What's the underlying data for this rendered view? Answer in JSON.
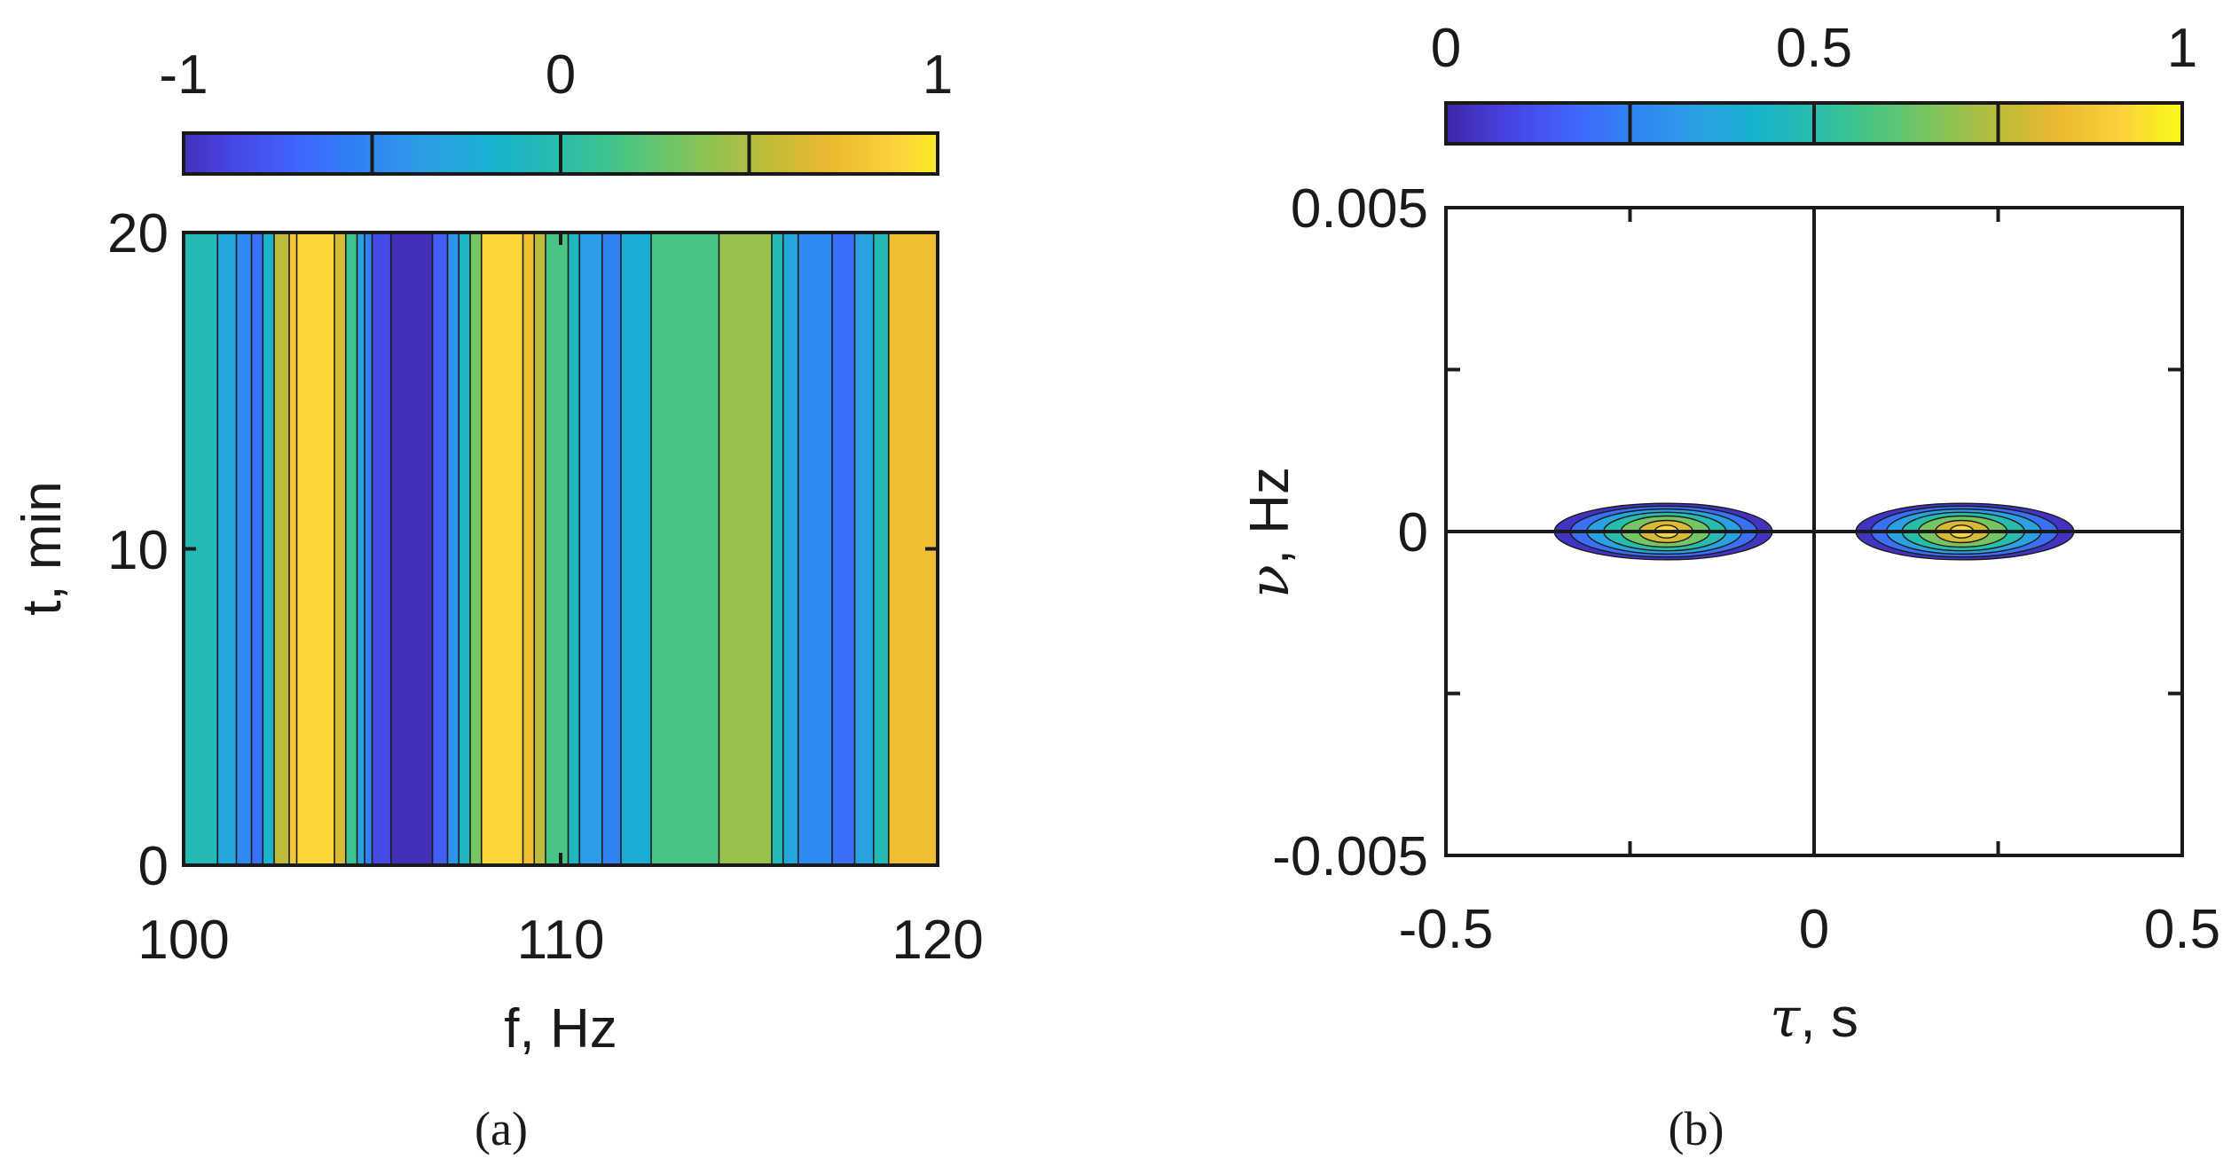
{
  "colors": {
    "parula": [
      "#3e26a8",
      "#4743e1",
      "#4163fb",
      "#2f83f5",
      "#2d9ee6",
      "#17b2cf",
      "#28bdab",
      "#4cc581",
      "#82c45a",
      "#bbbc3b",
      "#ecb92f",
      "#fbd13d",
      "#f9fb15"
    ],
    "frame": "#1a1a1a"
  },
  "chart_data": [
    {
      "type": "heatmap",
      "panel": "(a)",
      "caption": "(a)",
      "xlabel": "f, Hz",
      "ylabel": "t, min",
      "xlim": [
        100,
        120
      ],
      "ylim": [
        0,
        20
      ],
      "xticks": [
        100,
        110,
        120
      ],
      "xtick_labels": [
        "100",
        "110",
        "120"
      ],
      "yticks": [
        0,
        10,
        20
      ],
      "ytick_labels": [
        "0",
        "10",
        "20"
      ],
      "colorbar": {
        "range": [
          -1,
          1
        ],
        "ticks": [
          -1,
          0,
          1
        ],
        "tick_labels": [
          "-1",
          "0",
          "1"
        ],
        "divider_values": [
          -0.5,
          0,
          0.5
        ],
        "position": "top"
      },
      "description_of_values": "values vary only with f (constant in t)",
      "bands": [
        {
          "f0": 100.0,
          "f1": 100.9,
          "value": -0.05
        },
        {
          "f0": 100.9,
          "f1": 101.4,
          "value": -0.25
        },
        {
          "f0": 101.4,
          "f1": 101.8,
          "value": -0.45
        },
        {
          "f0": 101.8,
          "f1": 102.1,
          "value": -0.6
        },
        {
          "f0": 102.1,
          "f1": 102.4,
          "value": -0.15
        },
        {
          "f0": 102.4,
          "f1": 102.8,
          "value": 0.5
        },
        {
          "f0": 102.8,
          "f1": 103.0,
          "value": 0.75
        },
        {
          "f0": 103.0,
          "f1": 104.0,
          "value": 0.85
        },
        {
          "f0": 104.0,
          "f1": 104.3,
          "value": 0.6
        },
        {
          "f0": 104.3,
          "f1": 104.6,
          "value": 0.1
        },
        {
          "f0": 104.6,
          "f1": 104.8,
          "value": -0.3
        },
        {
          "f0": 104.8,
          "f1": 105.0,
          "value": -0.5
        },
        {
          "f0": 105.0,
          "f1": 105.5,
          "value": -0.8
        },
        {
          "f0": 105.5,
          "f1": 106.6,
          "value": -0.95
        },
        {
          "f0": 106.6,
          "f1": 107.0,
          "value": -0.7
        },
        {
          "f0": 107.0,
          "f1": 107.3,
          "value": -0.4
        },
        {
          "f0": 107.3,
          "f1": 107.6,
          "value": -0.1
        },
        {
          "f0": 107.6,
          "f1": 107.9,
          "value": 0.3
        },
        {
          "f0": 107.9,
          "f1": 109.0,
          "value": 0.85
        },
        {
          "f0": 109.0,
          "f1": 109.3,
          "value": 0.7
        },
        {
          "f0": 109.3,
          "f1": 109.6,
          "value": 0.5
        },
        {
          "f0": 109.6,
          "f1": 110.2,
          "value": 0.15
        },
        {
          "f0": 110.2,
          "f1": 110.5,
          "value": -0.1
        },
        {
          "f0": 110.5,
          "f1": 111.1,
          "value": -0.35
        },
        {
          "f0": 111.1,
          "f1": 111.6,
          "value": -0.5
        },
        {
          "f0": 111.6,
          "f1": 112.4,
          "value": -0.2
        },
        {
          "f0": 112.4,
          "f1": 114.2,
          "value": 0.15
        },
        {
          "f0": 114.2,
          "f1": 115.6,
          "value": 0.4
        },
        {
          "f0": 115.6,
          "f1": 115.9,
          "value": -0.05
        },
        {
          "f0": 115.9,
          "f1": 116.3,
          "value": -0.25
        },
        {
          "f0": 116.3,
          "f1": 117.2,
          "value": -0.45
        },
        {
          "f0": 117.2,
          "f1": 117.8,
          "value": -0.6
        },
        {
          "f0": 117.8,
          "f1": 118.3,
          "value": -0.3
        },
        {
          "f0": 118.3,
          "f1": 118.7,
          "value": -0.05
        },
        {
          "f0": 118.7,
          "f1": 120.0,
          "value": 0.7
        }
      ]
    },
    {
      "type": "heatmap",
      "panel": "(b)",
      "caption": "(b)",
      "xlabel_symbol": "τ",
      "xlabel_unit": ", s",
      "ylabel_symbol": "ν",
      "ylabel_unit": ", Hz",
      "xlim": [
        -0.5,
        0.5
      ],
      "ylim": [
        -0.005,
        0.005
      ],
      "xticks": [
        -0.5,
        0,
        0.5
      ],
      "xtick_labels": [
        "-0.5",
        "0",
        "0.5"
      ],
      "minor_xticks": [
        -0.25,
        0.25
      ],
      "yticks": [
        -0.005,
        0,
        0.005
      ],
      "ytick_labels": [
        "-0.005",
        "0",
        "0.005"
      ],
      "minor_yticks": [
        -0.0025,
        0.0025
      ],
      "colorbar": {
        "range": [
          0,
          1
        ],
        "ticks": [
          0,
          0.5,
          1
        ],
        "tick_labels": [
          "0",
          "0.5",
          "1"
        ],
        "divider_values": [
          0.25,
          0.5,
          0.75
        ],
        "position": "top"
      },
      "reference_lines": {
        "tau": 0,
        "nu": 0
      },
      "blobs": [
        {
          "tau_center": -0.2,
          "nu_center": 0,
          "tau_extent": [
            -0.36,
            -0.05
          ],
          "nu_halfwidth": 0.00045,
          "peak": 1
        },
        {
          "tau_center": 0.2,
          "nu_center": 0,
          "tau_extent": [
            0.05,
            0.36
          ],
          "nu_halfwidth": 0.00045,
          "peak": 1
        }
      ],
      "contour_levels": [
        0.05,
        0.2,
        0.35,
        0.5,
        0.65,
        0.8,
        0.92
      ]
    }
  ]
}
